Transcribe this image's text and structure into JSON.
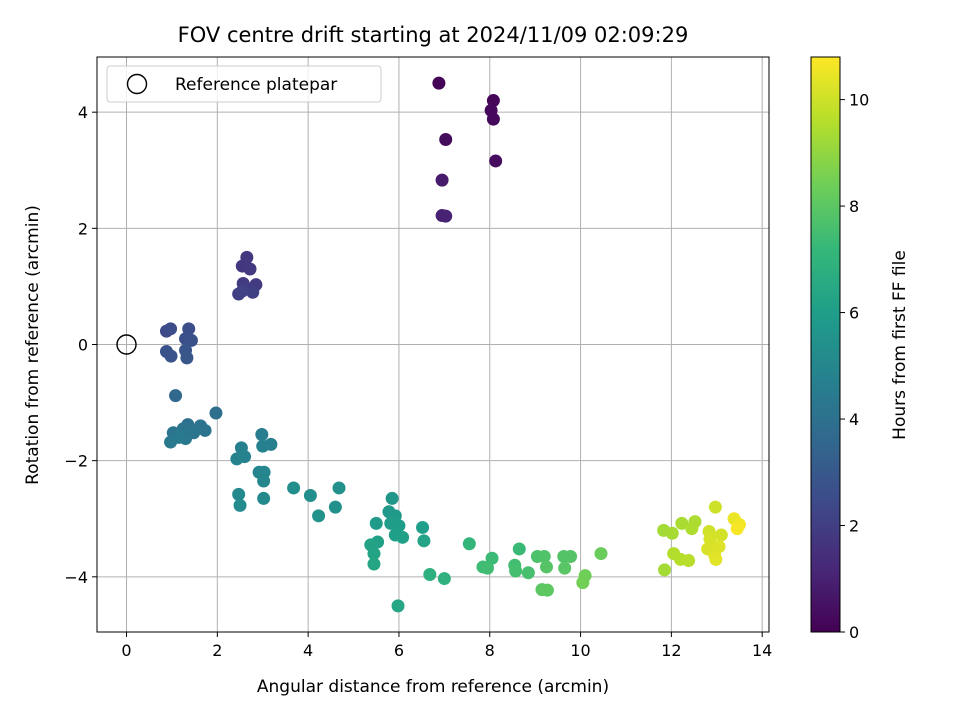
{
  "chart_data": {
    "type": "scatter",
    "title": "FOV centre drift starting at 2024/11/09 02:09:29",
    "xlabel": "Angular distance from reference (arcmin)",
    "ylabel": "Rotation from reference (arcmin)",
    "xlim": [
      -0.65,
      14.15
    ],
    "ylim": [
      -4.95,
      4.95
    ],
    "xticks": [
      0,
      2,
      4,
      6,
      8,
      10,
      12,
      14
    ],
    "yticks": [
      -4,
      -2,
      0,
      2,
      4
    ],
    "grid": true,
    "legend": {
      "placement": "top-left",
      "entries": [
        "Reference platepar"
      ]
    },
    "reference_point": {
      "x": 0,
      "y": 0
    },
    "colorbar": {
      "label": "Hours from first FF file",
      "range": [
        0,
        10.8
      ],
      "ticks": [
        0,
        2,
        4,
        6,
        8,
        10
      ],
      "colormap": "viridis"
    },
    "points": [
      {
        "x": 6.88,
        "y": 4.5,
        "h": 0.1
      },
      {
        "x": 8.08,
        "y": 4.2,
        "h": 0.15
      },
      {
        "x": 8.03,
        "y": 4.03,
        "h": 0.2
      },
      {
        "x": 8.08,
        "y": 3.88,
        "h": 0.25
      },
      {
        "x": 7.03,
        "y": 3.53,
        "h": 0.3
      },
      {
        "x": 8.13,
        "y": 3.16,
        "h": 0.35
      },
      {
        "x": 6.95,
        "y": 2.83,
        "h": 0.8
      },
      {
        "x": 6.95,
        "y": 2.22,
        "h": 1.0
      },
      {
        "x": 7.03,
        "y": 2.21,
        "h": 1.05
      },
      {
        "x": 2.65,
        "y": 1.5,
        "h": 1.7
      },
      {
        "x": 2.55,
        "y": 1.35,
        "h": 1.75
      },
      {
        "x": 2.72,
        "y": 1.3,
        "h": 1.8
      },
      {
        "x": 2.57,
        "y": 1.05,
        "h": 1.85
      },
      {
        "x": 2.85,
        "y": 1.03,
        "h": 1.9
      },
      {
        "x": 2.62,
        "y": 0.98,
        "h": 1.95
      },
      {
        "x": 2.47,
        "y": 0.87,
        "h": 2.0
      },
      {
        "x": 2.78,
        "y": 0.9,
        "h": 2.05
      },
      {
        "x": 2.55,
        "y": 0.92,
        "h": 2.1
      },
      {
        "x": 0.88,
        "y": 0.23,
        "h": 2.5
      },
      {
        "x": 0.97,
        "y": 0.27,
        "h": 2.55
      },
      {
        "x": 1.37,
        "y": 0.27,
        "h": 2.6
      },
      {
        "x": 1.3,
        "y": 0.1,
        "h": 2.65
      },
      {
        "x": 1.43,
        "y": 0.07,
        "h": 2.7
      },
      {
        "x": 0.88,
        "y": -0.12,
        "h": 2.75
      },
      {
        "x": 0.98,
        "y": -0.2,
        "h": 2.8
      },
      {
        "x": 1.3,
        "y": -0.1,
        "h": 2.85
      },
      {
        "x": 1.33,
        "y": -0.23,
        "h": 2.9
      },
      {
        "x": 1.08,
        "y": -0.88,
        "h": 3.6
      },
      {
        "x": 1.97,
        "y": -1.18,
        "h": 3.9
      },
      {
        "x": 1.35,
        "y": -1.38,
        "h": 4.0
      },
      {
        "x": 1.63,
        "y": -1.4,
        "h": 4.05
      },
      {
        "x": 1.25,
        "y": -1.45,
        "h": 4.1
      },
      {
        "x": 1.73,
        "y": -1.48,
        "h": 4.15
      },
      {
        "x": 1.03,
        "y": -1.52,
        "h": 4.2
      },
      {
        "x": 1.48,
        "y": -1.52,
        "h": 4.25
      },
      {
        "x": 1.18,
        "y": -1.56,
        "h": 4.3
      },
      {
        "x": 1.3,
        "y": -1.62,
        "h": 4.35
      },
      {
        "x": 0.97,
        "y": -1.68,
        "h": 4.4
      },
      {
        "x": 1.15,
        "y": -1.6,
        "h": 4.45
      },
      {
        "x": 2.98,
        "y": -1.55,
        "h": 4.6
      },
      {
        "x": 3.18,
        "y": -1.72,
        "h": 4.65
      },
      {
        "x": 2.53,
        "y": -1.78,
        "h": 4.7
      },
      {
        "x": 3.0,
        "y": -1.75,
        "h": 4.75
      },
      {
        "x": 2.6,
        "y": -1.93,
        "h": 4.8
      },
      {
        "x": 2.43,
        "y": -1.97,
        "h": 4.85
      },
      {
        "x": 2.92,
        "y": -2.2,
        "h": 4.9
      },
      {
        "x": 3.03,
        "y": -2.2,
        "h": 4.95
      },
      {
        "x": 3.02,
        "y": -2.35,
        "h": 5.0
      },
      {
        "x": 2.47,
        "y": -2.58,
        "h": 5.05
      },
      {
        "x": 3.02,
        "y": -2.65,
        "h": 5.1
      },
      {
        "x": 2.5,
        "y": -2.77,
        "h": 5.15
      },
      {
        "x": 3.68,
        "y": -2.47,
        "h": 5.3
      },
      {
        "x": 4.05,
        "y": -2.6,
        "h": 5.35
      },
      {
        "x": 4.68,
        "y": -2.47,
        "h": 5.4
      },
      {
        "x": 4.6,
        "y": -2.8,
        "h": 5.45
      },
      {
        "x": 4.23,
        "y": -2.95,
        "h": 5.5
      },
      {
        "x": 5.85,
        "y": -2.65,
        "h": 5.7
      },
      {
        "x": 5.78,
        "y": -2.88,
        "h": 5.75
      },
      {
        "x": 5.92,
        "y": -2.95,
        "h": 5.8
      },
      {
        "x": 5.5,
        "y": -3.08,
        "h": 5.85
      },
      {
        "x": 5.82,
        "y": -3.08,
        "h": 5.9
      },
      {
        "x": 6.0,
        "y": -3.12,
        "h": 5.95
      },
      {
        "x": 6.52,
        "y": -3.15,
        "h": 6.0
      },
      {
        "x": 5.92,
        "y": -3.28,
        "h": 6.05
      },
      {
        "x": 6.08,
        "y": -3.32,
        "h": 6.1
      },
      {
        "x": 5.53,
        "y": -3.4,
        "h": 6.15
      },
      {
        "x": 5.38,
        "y": -3.45,
        "h": 6.2
      },
      {
        "x": 6.55,
        "y": -3.38,
        "h": 6.25
      },
      {
        "x": 5.45,
        "y": -3.6,
        "h": 6.3
      },
      {
        "x": 5.45,
        "y": -3.78,
        "h": 6.35
      },
      {
        "x": 5.98,
        "y": -4.5,
        "h": 6.4
      },
      {
        "x": 6.68,
        "y": -3.96,
        "h": 6.8
      },
      {
        "x": 7.0,
        "y": -4.03,
        "h": 6.85
      },
      {
        "x": 7.55,
        "y": -3.43,
        "h": 7.1
      },
      {
        "x": 8.65,
        "y": -3.52,
        "h": 7.3
      },
      {
        "x": 8.05,
        "y": -3.68,
        "h": 7.35
      },
      {
        "x": 7.85,
        "y": -3.83,
        "h": 7.4
      },
      {
        "x": 7.95,
        "y": -3.85,
        "h": 7.45
      },
      {
        "x": 8.55,
        "y": -3.8,
        "h": 7.5
      },
      {
        "x": 8.57,
        "y": -3.9,
        "h": 7.55
      },
      {
        "x": 8.85,
        "y": -3.93,
        "h": 7.6
      },
      {
        "x": 9.05,
        "y": -3.65,
        "h": 7.7
      },
      {
        "x": 9.2,
        "y": -3.65,
        "h": 7.75
      },
      {
        "x": 9.63,
        "y": -3.65,
        "h": 7.8
      },
      {
        "x": 9.78,
        "y": -3.65,
        "h": 7.85
      },
      {
        "x": 9.25,
        "y": -3.83,
        "h": 7.9
      },
      {
        "x": 9.65,
        "y": -3.85,
        "h": 7.95
      },
      {
        "x": 9.15,
        "y": -4.22,
        "h": 8.0
      },
      {
        "x": 9.27,
        "y": -4.23,
        "h": 8.05
      },
      {
        "x": 10.45,
        "y": -3.6,
        "h": 8.3
      },
      {
        "x": 10.1,
        "y": -3.98,
        "h": 8.4
      },
      {
        "x": 10.05,
        "y": -4.1,
        "h": 8.45
      },
      {
        "x": 11.83,
        "y": -3.2,
        "h": 9.3
      },
      {
        "x": 12.02,
        "y": -3.25,
        "h": 9.35
      },
      {
        "x": 12.23,
        "y": -3.08,
        "h": 9.4
      },
      {
        "x": 12.52,
        "y": -3.05,
        "h": 9.45
      },
      {
        "x": 12.45,
        "y": -3.17,
        "h": 9.5
      },
      {
        "x": 12.05,
        "y": -3.6,
        "h": 9.55
      },
      {
        "x": 12.2,
        "y": -3.7,
        "h": 9.6
      },
      {
        "x": 12.38,
        "y": -3.72,
        "h": 9.65
      },
      {
        "x": 11.85,
        "y": -3.88,
        "h": 9.3
      },
      {
        "x": 12.97,
        "y": -2.8,
        "h": 10.0
      },
      {
        "x": 12.83,
        "y": -3.22,
        "h": 10.05
      },
      {
        "x": 13.1,
        "y": -3.28,
        "h": 10.1
      },
      {
        "x": 12.85,
        "y": -3.35,
        "h": 10.15
      },
      {
        "x": 12.8,
        "y": -3.52,
        "h": 10.2
      },
      {
        "x": 13.05,
        "y": -3.48,
        "h": 10.25
      },
      {
        "x": 12.95,
        "y": -3.62,
        "h": 10.3
      },
      {
        "x": 12.98,
        "y": -3.7,
        "h": 10.35
      },
      {
        "x": 13.38,
        "y": -3.0,
        "h": 10.5
      },
      {
        "x": 13.5,
        "y": -3.1,
        "h": 10.6
      },
      {
        "x": 13.45,
        "y": -3.17,
        "h": 10.7
      }
    ]
  }
}
